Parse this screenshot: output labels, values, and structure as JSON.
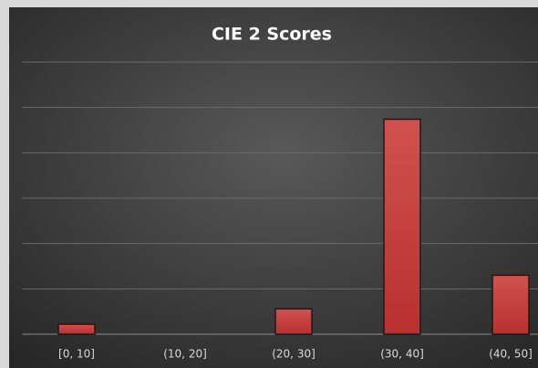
{
  "chart_data": {
    "type": "bar",
    "title": "CIE 2 Scores",
    "categories": [
      "[0, 10]",
      "(10, 20]",
      "(20, 30]",
      "(30, 40]",
      "(40, 50]"
    ],
    "values": [
      0.22,
      0,
      0.56,
      4.74,
      1.3
    ],
    "color": "#c0393b",
    "ylim": [
      0,
      6
    ],
    "yticks": [
      0,
      1,
      2,
      3,
      4,
      5,
      6
    ],
    "grid": true
  }
}
